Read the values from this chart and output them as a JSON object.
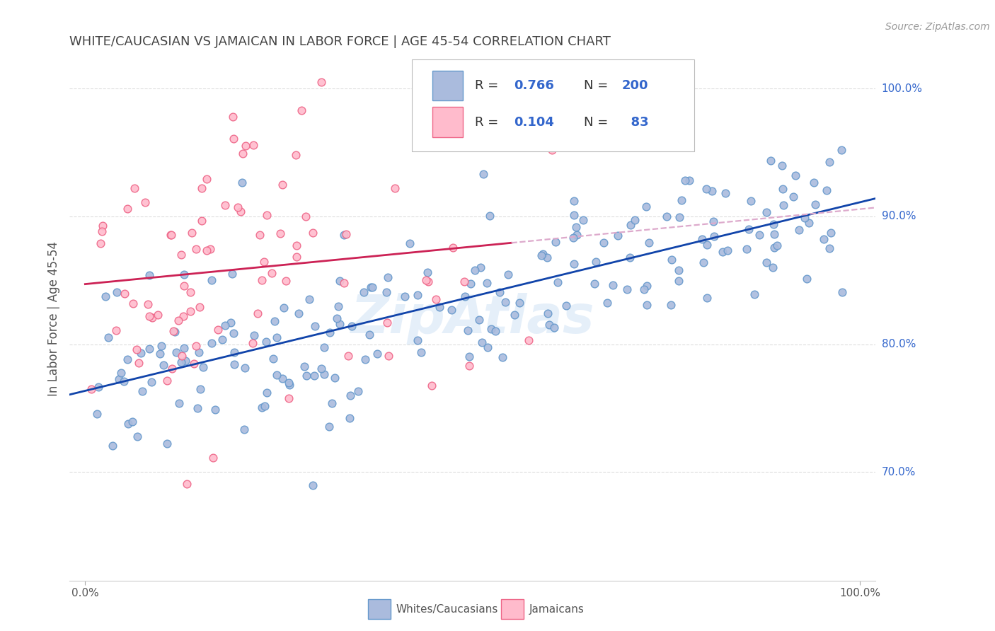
{
  "title": "WHITE/CAUCASIAN VS JAMAICAN IN LABOR FORCE | AGE 45-54 CORRELATION CHART",
  "source": "Source: ZipAtlas.com",
  "ylabel": "In Labor Force | Age 45-54",
  "yticks": [
    "70.0%",
    "80.0%",
    "90.0%",
    "100.0%"
  ],
  "ytick_vals": [
    0.7,
    0.8,
    0.9,
    1.0
  ],
  "xlim": [
    -0.02,
    1.02
  ],
  "ylim": [
    0.615,
    1.025
  ],
  "blue_edge": "#6699CC",
  "blue_face": "#AABBDD",
  "pink_edge": "#EE6688",
  "pink_face": "#FFBBCC",
  "blue_line_color": "#1144AA",
  "pink_line_color": "#CC2255",
  "pink_dash_color": "#DDAACC",
  "watermark": "ZipAtlas",
  "grid_color": "#DDDDDD",
  "background_color": "#FFFFFF",
  "legend_text_color": "#3366CC",
  "title_color": "#444444",
  "right_label_color": "#3366CC",
  "blue_n": 200,
  "pink_n": 83,
  "blue_seed": 42,
  "pink_seed": 7
}
